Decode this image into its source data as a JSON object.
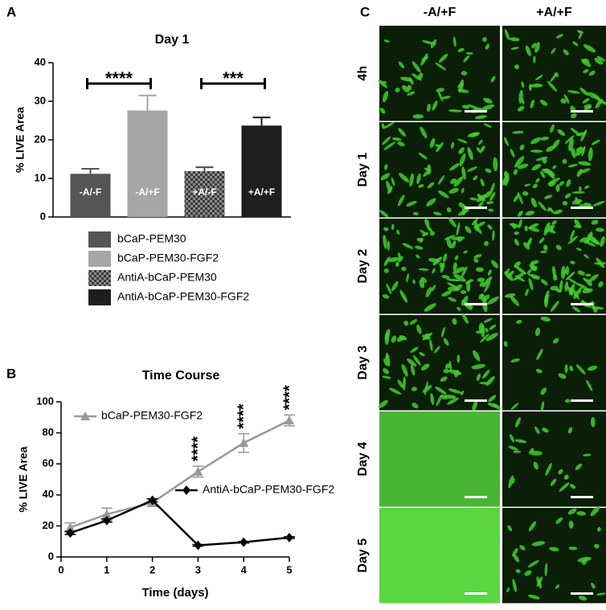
{
  "chart_data": [
    {
      "type": "bar",
      "panel": "A",
      "title": "Day 1",
      "y_label": "% LIVE Area",
      "categories": [
        "-A/-F",
        "-A/+F",
        "+A/-F",
        "+A/+F"
      ],
      "values": [
        11.2,
        27.6,
        11.9,
        23.7
      ],
      "errors": [
        1.3,
        3.9,
        1.0,
        2.1
      ],
      "colors": [
        "#555555",
        "#a6a6a6",
        "#4d4d4d",
        "#1e1e1e"
      ],
      "patterned": [
        false,
        false,
        true,
        false
      ],
      "legend_labels": [
        "bCaP-PEM30",
        "bCaP-PEM30-FGF2",
        "AntiA-bCaP-PEM30",
        "AntiA-bCaP-PEM30-FGF2"
      ],
      "annotations": [
        {
          "text": "****",
          "between": [
            "-A/-F",
            "-A/+F"
          ]
        },
        {
          "text": "***",
          "between": [
            "+A/-F",
            "+A/+F"
          ]
        }
      ],
      "ylim": [
        0,
        40
      ],
      "yticks": [
        0,
        10,
        20,
        30,
        40
      ]
    },
    {
      "type": "line",
      "panel": "B",
      "title": "Time Course",
      "x_label": "Time (days)",
      "y_label": "% LIVE Area",
      "x": [
        0.2,
        1,
        2,
        3,
        4,
        5
      ],
      "series": [
        {
          "name": "bCaP-PEM30-FGF2",
          "color": "#999999",
          "marker": "triangle",
          "values": [
            19,
            27.5,
            35,
            55,
            73.5,
            88
          ],
          "errors": [
            3,
            4,
            2.5,
            3.5,
            6,
            3.5
          ]
        },
        {
          "name": "AntiA-bCaP-PEM30-FGF2",
          "color": "#000000",
          "marker": "diamond",
          "values": [
            15.5,
            23.5,
            36.5,
            7.5,
            9.5,
            12.5
          ],
          "errors": [
            1,
            1,
            1,
            0.5,
            0.5,
            0.5
          ]
        }
      ],
      "annotations": [
        {
          "text": "****",
          "x": 3
        },
        {
          "text": "****",
          "x": 4
        },
        {
          "text": "****",
          "x": 5
        }
      ],
      "xlim": [
        0,
        5
      ],
      "xticks": [
        0,
        1,
        2,
        3,
        4,
        5
      ],
      "ylim": [
        0,
        100
      ],
      "yticks": [
        0,
        20,
        40,
        60,
        80,
        100
      ]
    }
  ],
  "panel_c": {
    "label": "C",
    "columns": [
      "-A/+F",
      "+A/+F"
    ],
    "rows": [
      "4h",
      "Day 1",
      "Day 2",
      "Day 3",
      "Day 4",
      "Day 5"
    ]
  }
}
